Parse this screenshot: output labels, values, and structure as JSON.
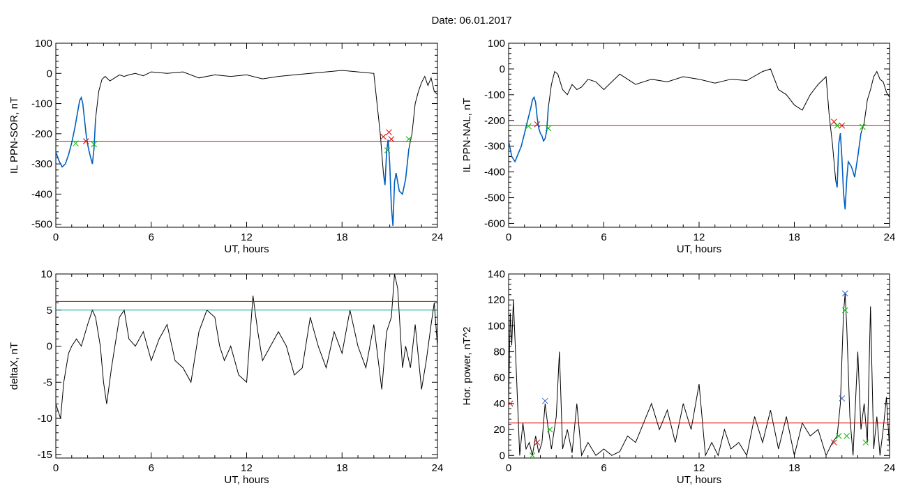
{
  "header": {
    "title": "Date:  06.01.2017"
  },
  "colors": {
    "curve": "#000000",
    "threshold": "#e00000",
    "highlight": "#0060c0",
    "level2": "#00a0a0",
    "marker_green": "#00c000",
    "marker_red": "#e00000",
    "marker_blue": "#3060d0"
  },
  "chart_data": [
    {
      "type": "line",
      "xlabel": "UT, hours",
      "ylabel": "IL PPN-SOR, nT",
      "xlim": [
        0,
        24
      ],
      "ylim": [
        -510,
        100
      ],
      "xticks": [
        0,
        6,
        12,
        18,
        24
      ],
      "yticks": [
        100,
        0,
        -100,
        -200,
        -300,
        -400,
        -500
      ],
      "threshold": -225,
      "series": [
        {
          "x": [
            0,
            0.2,
            0.4,
            0.6,
            0.8,
            1.0,
            1.2,
            1.4,
            1.5,
            1.6,
            1.7,
            1.8,
            1.9,
            2.0,
            2.1,
            2.2,
            2.3,
            2.4,
            2.5,
            2.7,
            2.9,
            3.1,
            3.4,
            3.7,
            4.0,
            4.3,
            4.6,
            5.0,
            5.5,
            6,
            7,
            8,
            9,
            10,
            11,
            12,
            13,
            14,
            15,
            16,
            17,
            18,
            19,
            20,
            20.2,
            20.4,
            20.6,
            20.7,
            20.8,
            20.9,
            21.0,
            21.1,
            21.2,
            21.3,
            21.4,
            21.6,
            21.8,
            22.0,
            22.2,
            22.4,
            22.6,
            22.8,
            23.0,
            23.2,
            23.4,
            23.6,
            23.8,
            24
          ],
          "y": [
            -260,
            -290,
            -310,
            -300,
            -270,
            -230,
            -180,
            -120,
            -90,
            -80,
            -100,
            -150,
            -200,
            -235,
            -260,
            -280,
            -300,
            -250,
            -150,
            -60,
            -20,
            -10,
            -25,
            -15,
            -5,
            -10,
            -5,
            0,
            -8,
            5,
            0,
            5,
            -15,
            -5,
            -10,
            -5,
            -18,
            -10,
            -5,
            0,
            5,
            10,
            5,
            0,
            -100,
            -200,
            -330,
            -370,
            -260,
            -220,
            -300,
            -440,
            -505,
            -360,
            -330,
            -390,
            -400,
            -350,
            -250,
            -200,
            -100,
            -60,
            -30,
            -10,
            -40,
            -15,
            -60,
            -70
          ],
          "highlight_ranges": [
            [
              0,
              2.5
            ],
            [
              20.5,
              22.3
            ]
          ]
        }
      ],
      "markers": [
        {
          "x": 1.25,
          "y": -232,
          "color": "green"
        },
        {
          "x": 1.9,
          "y": -225,
          "color": "red"
        },
        {
          "x": 2.4,
          "y": -235,
          "color": "green"
        },
        {
          "x": 20.6,
          "y": -210,
          "color": "red"
        },
        {
          "x": 20.95,
          "y": -195,
          "color": "red"
        },
        {
          "x": 20.85,
          "y": -255,
          "color": "green"
        },
        {
          "x": 21.1,
          "y": -218,
          "color": "red"
        },
        {
          "x": 22.2,
          "y": -218,
          "color": "green"
        }
      ]
    },
    {
      "type": "line",
      "xlabel": "UT, hours",
      "ylabel": "IL PPN-NAL, nT",
      "xlim": [
        0,
        24
      ],
      "ylim": [
        -615,
        100
      ],
      "xticks": [
        0,
        6,
        12,
        18,
        24
      ],
      "yticks": [
        100,
        0,
        -100,
        -200,
        -300,
        -400,
        -500,
        -600
      ],
      "threshold": -220,
      "series": [
        {
          "x": [
            0,
            0.2,
            0.4,
            0.6,
            0.8,
            1.0,
            1.2,
            1.4,
            1.5,
            1.6,
            1.7,
            1.8,
            1.9,
            2.0,
            2.1,
            2.2,
            2.3,
            2.4,
            2.5,
            2.7,
            2.9,
            3.1,
            3.4,
            3.7,
            4.0,
            4.3,
            4.6,
            5.0,
            5.5,
            6,
            7,
            8,
            9,
            10,
            11,
            12,
            13,
            14,
            15,
            16,
            16.5,
            17,
            17.5,
            18,
            18.5,
            19,
            19.5,
            20,
            20.2,
            20.4,
            20.6,
            20.7,
            20.8,
            20.9,
            21.0,
            21.1,
            21.2,
            21.3,
            21.4,
            21.6,
            21.8,
            22.0,
            22.2,
            22.4,
            22.6,
            22.8,
            23.0,
            23.2,
            23.4,
            23.6,
            23.8,
            24
          ],
          "y": [
            -280,
            -340,
            -360,
            -330,
            -300,
            -250,
            -200,
            -150,
            -120,
            -110,
            -130,
            -190,
            -230,
            -250,
            -260,
            -280,
            -270,
            -240,
            -150,
            -60,
            -10,
            -20,
            -80,
            -100,
            -60,
            -80,
            -70,
            -40,
            -50,
            -80,
            -20,
            -60,
            -40,
            -50,
            -30,
            -40,
            -55,
            -40,
            -45,
            -10,
            0,
            -80,
            -100,
            -140,
            -160,
            -100,
            -60,
            -30,
            -180,
            -290,
            -430,
            -460,
            -290,
            -250,
            -350,
            -480,
            -545,
            -430,
            -360,
            -380,
            -420,
            -340,
            -250,
            -210,
            -120,
            -80,
            -30,
            -10,
            -40,
            -50,
            -90,
            -110
          ],
          "highlight_ranges": [
            [
              0,
              2.5
            ],
            [
              20.5,
              22.3
            ]
          ]
        }
      ],
      "markers": [
        {
          "x": 1.25,
          "y": -222,
          "color": "green"
        },
        {
          "x": 1.8,
          "y": -215,
          "color": "red"
        },
        {
          "x": 2.5,
          "y": -230,
          "color": "green"
        },
        {
          "x": 20.5,
          "y": -205,
          "color": "red"
        },
        {
          "x": 20.7,
          "y": -220,
          "color": "green"
        },
        {
          "x": 21.0,
          "y": -220,
          "color": "red"
        },
        {
          "x": 22.3,
          "y": -225,
          "color": "green"
        }
      ]
    },
    {
      "type": "line",
      "xlabel": "UT, hours",
      "ylabel": "deltaX, nT",
      "xlim": [
        0,
        24
      ],
      "ylim": [
        -15.5,
        10
      ],
      "xticks": [
        0,
        6,
        12,
        18,
        24
      ],
      "yticks": [
        10,
        5,
        0,
        -5,
        -10,
        -15
      ],
      "threshold": 6.2,
      "threshold2": 5.0,
      "series": [
        {
          "x": [
            0,
            0.3,
            0.5,
            0.8,
            1.0,
            1.3,
            1.6,
            2.0,
            2.3,
            2.5,
            2.8,
            3.0,
            3.2,
            3.5,
            4.0,
            4.3,
            4.6,
            5.0,
            5.5,
            6.0,
            6.5,
            7.0,
            7.5,
            8.0,
            8.5,
            9.0,
            9.5,
            10.0,
            10.3,
            10.6,
            11.0,
            11.5,
            12.0,
            12.4,
            12.7,
            13.0,
            13.5,
            14.0,
            14.5,
            15.0,
            15.5,
            16.0,
            16.5,
            17.0,
            17.5,
            18.0,
            18.5,
            19.0,
            19.5,
            20.0,
            20.5,
            20.8,
            21.1,
            21.3,
            21.5,
            21.8,
            22.0,
            22.3,
            22.6,
            23.0,
            23.3,
            23.6,
            23.8,
            24.0
          ],
          "y": [
            -8,
            -10,
            -5,
            -1,
            0,
            1,
            0,
            3,
            5,
            4,
            0,
            -5,
            -8,
            -3,
            4,
            5,
            1,
            0,
            2,
            -2,
            1,
            3,
            -2,
            -3,
            -5,
            2,
            5,
            4,
            0,
            -2,
            0,
            -4,
            -5,
            7,
            2,
            -2,
            0,
            2,
            0,
            -4,
            -3,
            4,
            0,
            -3,
            2,
            -1,
            5,
            0,
            -3,
            3,
            -6,
            2,
            4,
            10,
            8,
            -3,
            0,
            -3,
            3,
            -6,
            -2,
            3,
            6,
            0
          ],
          "highlight_ranges": []
        }
      ],
      "markers": []
    },
    {
      "type": "line",
      "xlabel": "UT, hours",
      "ylabel": "Hor. power, nT^2",
      "xlim": [
        0,
        24
      ],
      "ylim": [
        -2,
        140
      ],
      "xticks": [
        0,
        6,
        12,
        18,
        24
      ],
      "yticks": [
        140,
        120,
        100,
        80,
        60,
        40,
        20,
        0
      ],
      "threshold": 25,
      "series": [
        {
          "x": [
            0,
            0.1,
            0.2,
            0.3,
            0.5,
            0.7,
            0.9,
            1.1,
            1.3,
            1.5,
            1.7,
            1.9,
            2.1,
            2.3,
            2.5,
            2.7,
            3.0,
            3.2,
            3.4,
            3.7,
            4.0,
            4.3,
            4.6,
            5.0,
            5.5,
            6.0,
            6.5,
            7.0,
            7.5,
            8.0,
            8.5,
            9.0,
            9.5,
            10.0,
            10.5,
            11.0,
            11.5,
            12.0,
            12.4,
            12.8,
            13.2,
            13.6,
            14.0,
            14.5,
            15.0,
            15.5,
            16.0,
            16.5,
            17.0,
            17.5,
            18.0,
            18.5,
            19.0,
            19.5,
            20.0,
            20.4,
            20.7,
            20.9,
            21.1,
            21.2,
            21.3,
            21.5,
            21.7,
            22.0,
            22.2,
            22.4,
            22.6,
            22.8,
            23.0,
            23.2,
            23.4,
            23.6,
            23.8,
            24.0
          ],
          "y": [
            40,
            110,
            85,
            120,
            60,
            0,
            25,
            5,
            10,
            0,
            15,
            2,
            10,
            40,
            20,
            5,
            30,
            80,
            5,
            20,
            2,
            40,
            0,
            10,
            0,
            5,
            0,
            3,
            15,
            10,
            25,
            40,
            20,
            35,
            10,
            40,
            20,
            55,
            0,
            10,
            0,
            20,
            5,
            10,
            0,
            30,
            10,
            35,
            5,
            30,
            0,
            25,
            15,
            20,
            0,
            10,
            15,
            40,
            110,
            125,
            100,
            30,
            0,
            80,
            20,
            40,
            10,
            115,
            5,
            30,
            0,
            20,
            45,
            5
          ],
          "highlight_ranges": []
        }
      ],
      "markers": [
        {
          "x": 1.5,
          "y": 0,
          "color": "green"
        },
        {
          "x": 1.8,
          "y": 10,
          "color": "red"
        },
        {
          "x": 2.3,
          "y": 42,
          "color": "blue"
        },
        {
          "x": 2.6,
          "y": 20,
          "color": "green"
        },
        {
          "x": 20.5,
          "y": 10,
          "color": "red"
        },
        {
          "x": 20.8,
          "y": 15,
          "color": "green"
        },
        {
          "x": 21.0,
          "y": 44,
          "color": "blue"
        },
        {
          "x": 21.2,
          "y": 125,
          "color": "blue"
        },
        {
          "x": 21.2,
          "y": 112,
          "color": "green"
        },
        {
          "x": 21.3,
          "y": 15,
          "color": "green"
        },
        {
          "x": 22.5,
          "y": 10,
          "color": "green"
        },
        {
          "x": 0.1,
          "y": 40,
          "color": "red"
        }
      ]
    }
  ]
}
